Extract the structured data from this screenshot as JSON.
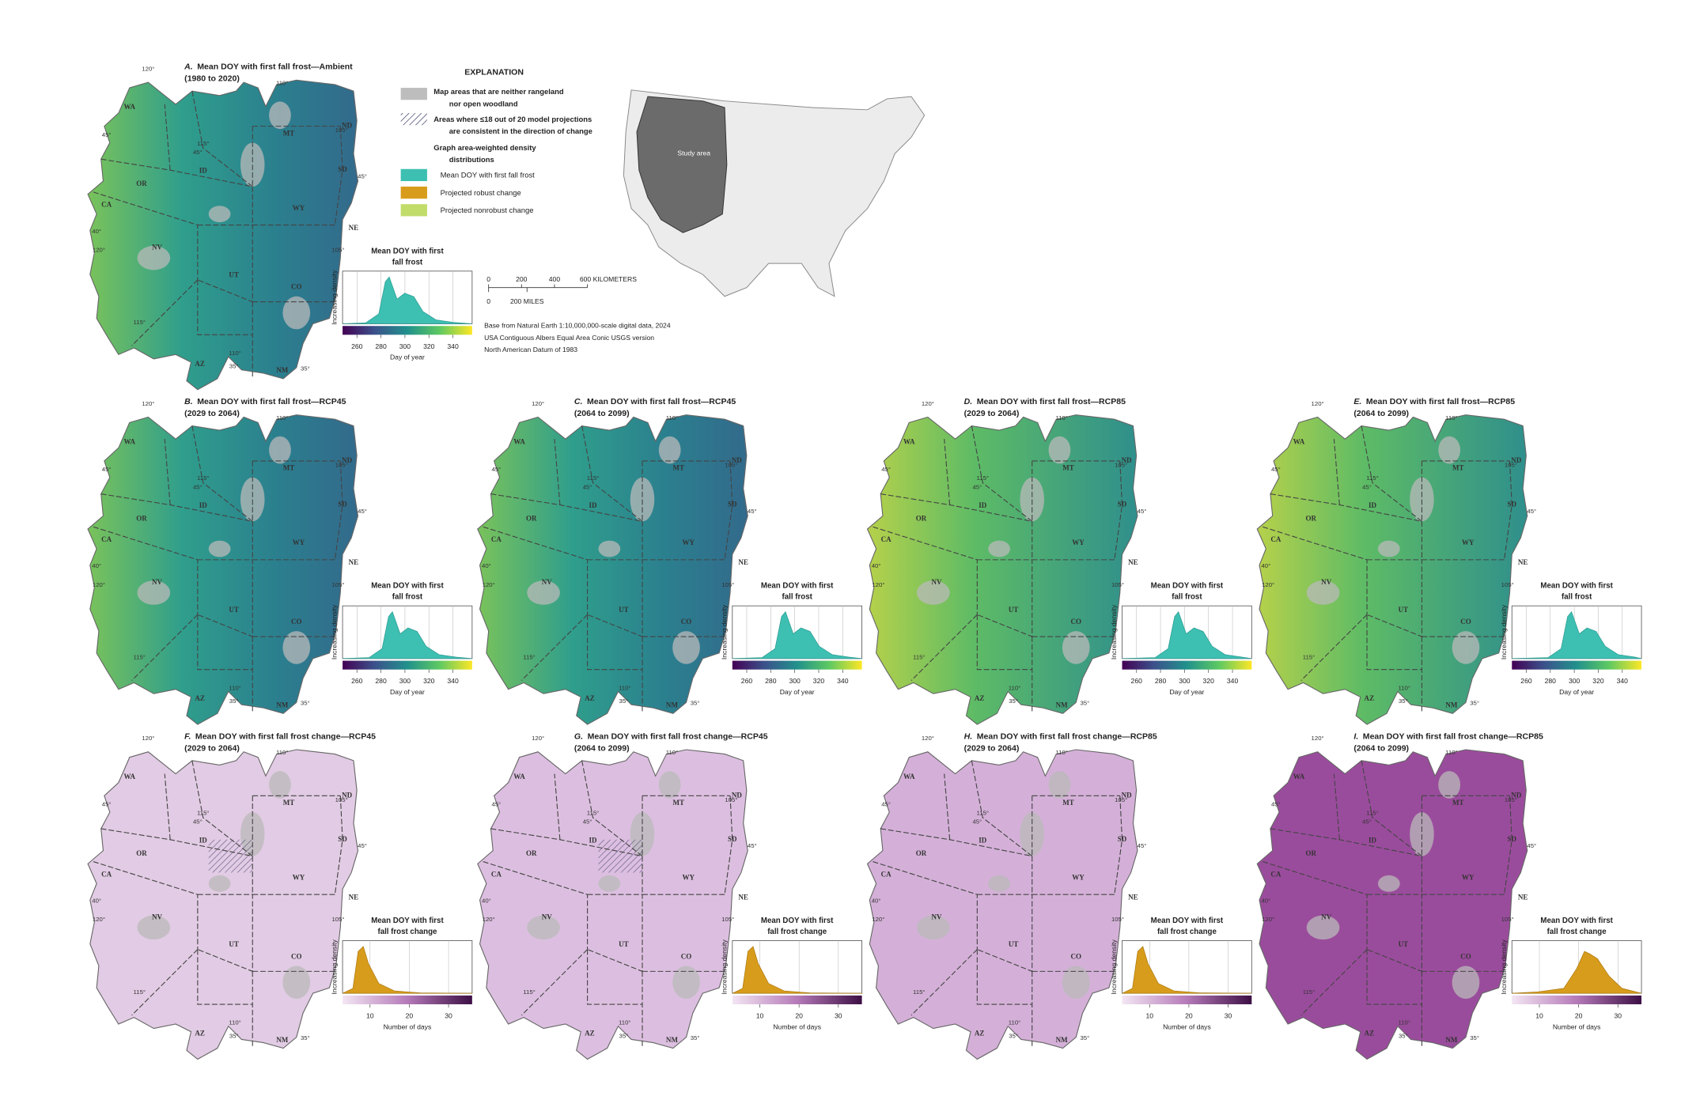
{
  "explanation": {
    "title": "EXPLANATION",
    "items": [
      [
        "Map areas that are neither rangeland",
        "nor open woodland"
      ],
      [
        "Areas where ≤18 out of 20 model projections",
        "are consistent in the direction of change"
      ],
      [
        "Graph area-weighted density",
        "distributions"
      ]
    ],
    "graph_items": [
      "Mean DOY with first fall frost",
      "Projected robust change",
      "Projected nonrobust change"
    ]
  },
  "inset": {
    "label": "Study area"
  },
  "scale_bar": {
    "km": [
      "0",
      "200",
      "400",
      "600 KILOMETERS"
    ],
    "mi": [
      "0",
      "200 MILES"
    ]
  },
  "credits": [
    "Base from Natural Earth 1:10,000,000-scale digital data, 2024",
    "USA Contiguous Albers Equal Area Conic USGS version",
    "North American Datum of 1983"
  ],
  "map_labels": {
    "states": [
      "WA",
      "OR",
      "ID",
      "MT",
      "ND",
      "SD",
      "WY",
      "NE",
      "CA",
      "NV",
      "UT",
      "CO",
      "AZ",
      "NM"
    ],
    "degrees": [
      "120°",
      "110°",
      "45°",
      "115°",
      "45°",
      "105°",
      "45°",
      "40°",
      "120°",
      "105°",
      "115°",
      "110°",
      "35°",
      "35°"
    ]
  },
  "graphs": {
    "y_label": "Increasing density",
    "doy": {
      "x_label": "Day of year",
      "xlim": [
        248,
        356
      ],
      "xticks": [
        260,
        280,
        300,
        320,
        340
      ]
    },
    "change": {
      "x_label": "Number of days",
      "xlim": [
        3,
        36
      ],
      "xticks": [
        10,
        20,
        30
      ]
    }
  },
  "panels": [
    {
      "letter": "A.",
      "title": "Mean DOY with first fall frost—Ambient",
      "period": "(1980 to 2020)",
      "graph": "doy",
      "graph_title": [
        "Mean DOY with first",
        "fall frost"
      ]
    },
    {
      "letter": "B.",
      "title": "Mean DOY with first fall frost—RCP45",
      "period": "(2029 to 2064)",
      "graph": "doy",
      "graph_title": [
        "Mean DOY with first",
        "fall frost"
      ]
    },
    {
      "letter": "C.",
      "title": "Mean DOY with first fall frost—RCP45",
      "period": "(2064 to 2099)",
      "graph": "doy",
      "graph_title": [
        "Mean DOY with first",
        "fall frost"
      ]
    },
    {
      "letter": "D.",
      "title": "Mean DOY with first fall frost—RCP85",
      "period": "(2029 to 2064)",
      "graph": "doy",
      "graph_title": [
        "Mean DOY with first",
        "fall frost"
      ]
    },
    {
      "letter": "E.",
      "title": "Mean DOY with first fall frost—RCP85",
      "period": "(2064 to 2099)",
      "graph": "doy",
      "graph_title": [
        "Mean DOY with first",
        "fall frost"
      ]
    },
    {
      "letter": "F.",
      "title": "Mean DOY with first fall frost change—RCP45",
      "period": "(2029 to 2064)",
      "graph": "change",
      "graph_title": [
        "Mean DOY with first",
        "fall frost change"
      ]
    },
    {
      "letter": "G.",
      "title": "Mean DOY with first fall frost change—RCP45",
      "period": "(2064 to 2099)",
      "graph": "change",
      "graph_title": [
        "Mean DOY with first",
        "fall frost change"
      ]
    },
    {
      "letter": "H.",
      "title": "Mean DOY with first fall frost change—RCP85",
      "period": "(2029 to 2064)",
      "graph": "change",
      "graph_title": [
        "Mean DOY with first",
        "fall frost change"
      ]
    },
    {
      "letter": "I.",
      "title": "Mean DOY with first fall frost change—RCP85",
      "period": "(2064 to 2099)",
      "graph": "change",
      "graph_title": [
        "Mean DOY with first",
        "fall frost change"
      ]
    }
  ]
}
